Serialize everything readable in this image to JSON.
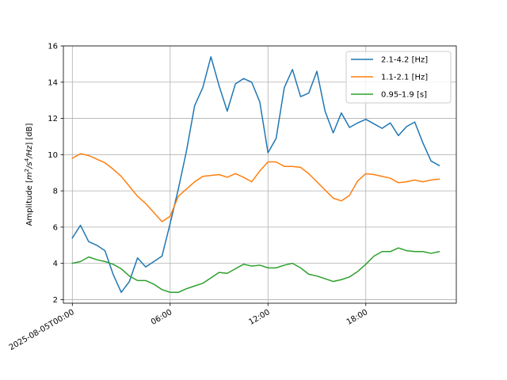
{
  "chart_data": {
    "type": "line",
    "title": "",
    "xlabel": "",
    "ylabel": "Amplitude [m2/s4/Hz] [dB]",
    "ylabel_parts": {
      "prefix": "Amplitude [",
      "m": "m",
      "exp2": "2",
      "s": "/s",
      "exp4": "4",
      "hz": "/Hz",
      "suffix": "] [dB]"
    },
    "x_start": "2025-08-05T00:00",
    "x_step_hours": 0.5,
    "xlim_hours": [
      -0.55,
      23.55
    ],
    "ylim": [
      1.8,
      16
    ],
    "yticks": [
      2,
      4,
      6,
      8,
      10,
      12,
      14,
      16
    ],
    "xticks": [
      {
        "hours": 0,
        "label": "2025-08-05T00:00"
      },
      {
        "hours": 6,
        "label": "06:00"
      },
      {
        "hours": 12,
        "label": "12:00"
      },
      {
        "hours": 18,
        "label": "18:00"
      }
    ],
    "grid": true,
    "legend_position": "top-right",
    "series": [
      {
        "name": "2.1-4.2 [Hz]",
        "color": "#1f77b4",
        "values": [
          5.4,
          6.1,
          5.2,
          5.0,
          4.7,
          3.4,
          2.4,
          3.0,
          4.3,
          3.8,
          4.1,
          4.4,
          6.2,
          8.1,
          10.2,
          12.7,
          13.7,
          15.4,
          13.8,
          12.4,
          13.9,
          14.2,
          14.0,
          12.9,
          10.1,
          10.9,
          13.7,
          14.7,
          13.2,
          13.4,
          14.6,
          12.4,
          11.2,
          12.3,
          11.5,
          11.75,
          11.95,
          11.7,
          11.45,
          11.75,
          11.05,
          11.55,
          11.8,
          10.65,
          9.65,
          9.4
        ]
      },
      {
        "name": "1.1-2.1 [Hz]",
        "color": "#ff7f0e",
        "values": [
          9.8,
          10.05,
          9.95,
          9.75,
          9.55,
          9.2,
          8.8,
          8.25,
          7.7,
          7.3,
          6.8,
          6.3,
          6.6,
          7.7,
          8.1,
          8.5,
          8.8,
          8.85,
          8.9,
          8.75,
          8.95,
          8.75,
          8.5,
          9.1,
          9.6,
          9.6,
          9.35,
          9.35,
          9.3,
          8.95,
          8.5,
          8.05,
          7.6,
          7.45,
          7.75,
          8.55,
          8.95,
          8.9,
          8.8,
          8.7,
          8.45,
          8.5,
          8.6,
          8.5,
          8.6,
          8.65
        ]
      },
      {
        "name": "0.95-1.9 [s]",
        "color": "#2ca02c",
        "values": [
          4.0,
          4.1,
          4.35,
          4.2,
          4.1,
          3.95,
          3.7,
          3.3,
          3.05,
          3.05,
          2.85,
          2.55,
          2.4,
          2.4,
          2.6,
          2.75,
          2.9,
          3.2,
          3.5,
          3.45,
          3.7,
          3.95,
          3.85,
          3.9,
          3.75,
          3.75,
          3.9,
          4.0,
          3.75,
          3.4,
          3.3,
          3.15,
          3.0,
          3.1,
          3.25,
          3.55,
          3.95,
          4.4,
          4.65,
          4.65,
          4.85,
          4.7,
          4.65,
          4.65,
          4.55,
          4.65
        ]
      }
    ]
  }
}
